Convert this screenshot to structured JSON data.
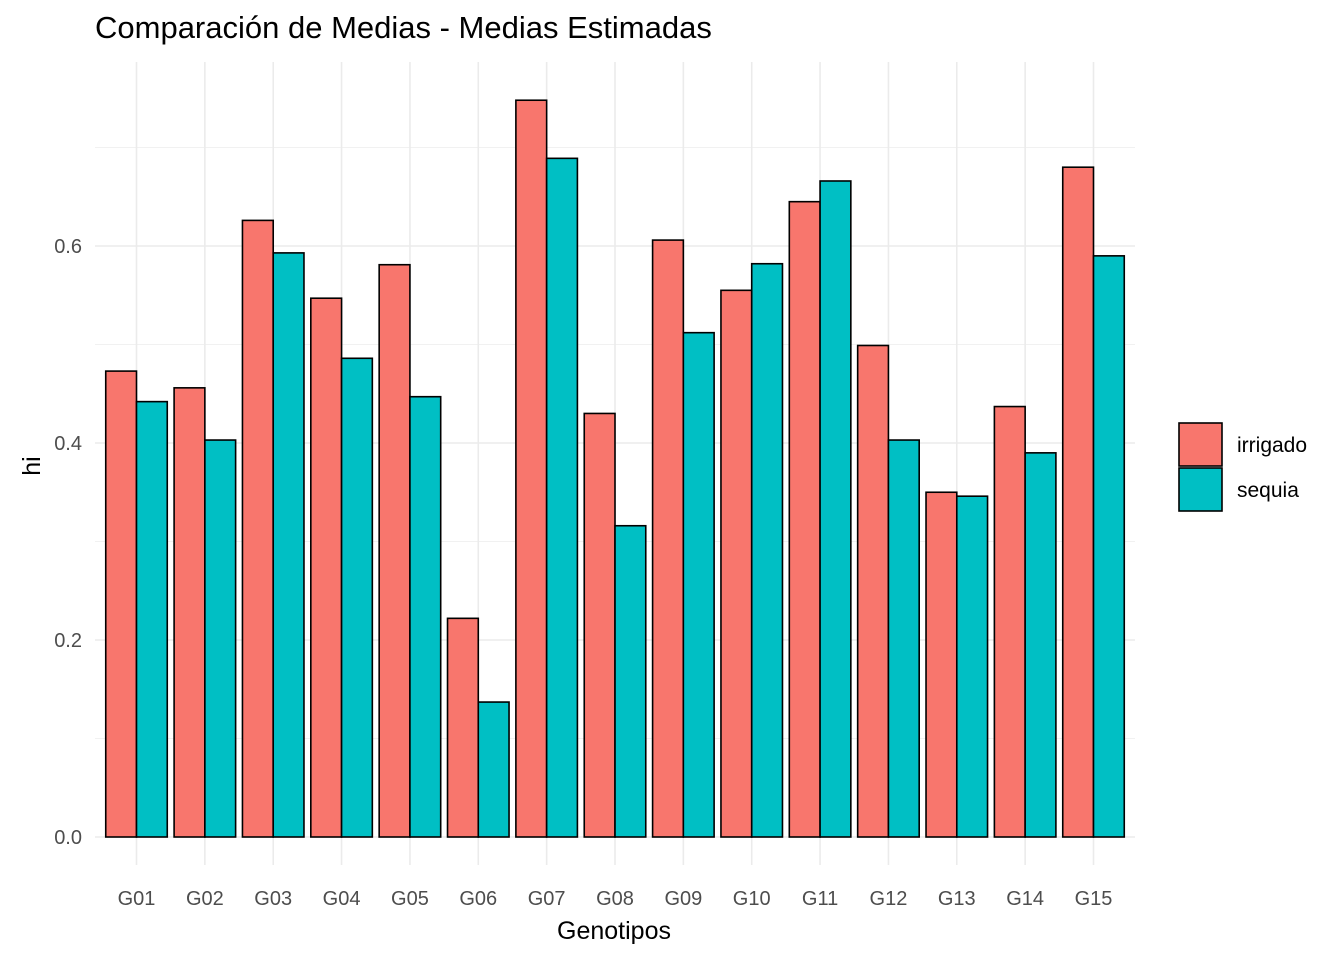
{
  "chart_data": {
    "type": "bar",
    "title": "Comparación de Medias - Medias Estimadas",
    "xlabel": "Genotipos",
    "ylabel": "hi",
    "ylim": [
      -0.0,
      0.78
    ],
    "yticks": [
      0.0,
      0.2,
      0.4,
      0.6
    ],
    "ytick_labels": [
      "0.0",
      "0.2",
      "0.4",
      "0.6"
    ],
    "grid": true,
    "legend_position": "right",
    "categories": [
      "G01",
      "G02",
      "G03",
      "G04",
      "G05",
      "G06",
      "G07",
      "G08",
      "G09",
      "G10",
      "G11",
      "G12",
      "G13",
      "G14",
      "G15"
    ],
    "series": [
      {
        "name": "irrigado",
        "color": "#F8766D",
        "values": [
          0.473,
          0.456,
          0.626,
          0.547,
          0.581,
          0.222,
          0.748,
          0.43,
          0.606,
          0.555,
          0.645,
          0.499,
          0.35,
          0.437,
          0.68
        ]
      },
      {
        "name": "sequia",
        "color": "#00BFC4",
        "values": [
          0.442,
          0.403,
          0.593,
          0.486,
          0.447,
          0.137,
          0.689,
          0.316,
          0.512,
          0.582,
          0.666,
          0.403,
          0.346,
          0.39,
          0.59
        ]
      }
    ]
  }
}
